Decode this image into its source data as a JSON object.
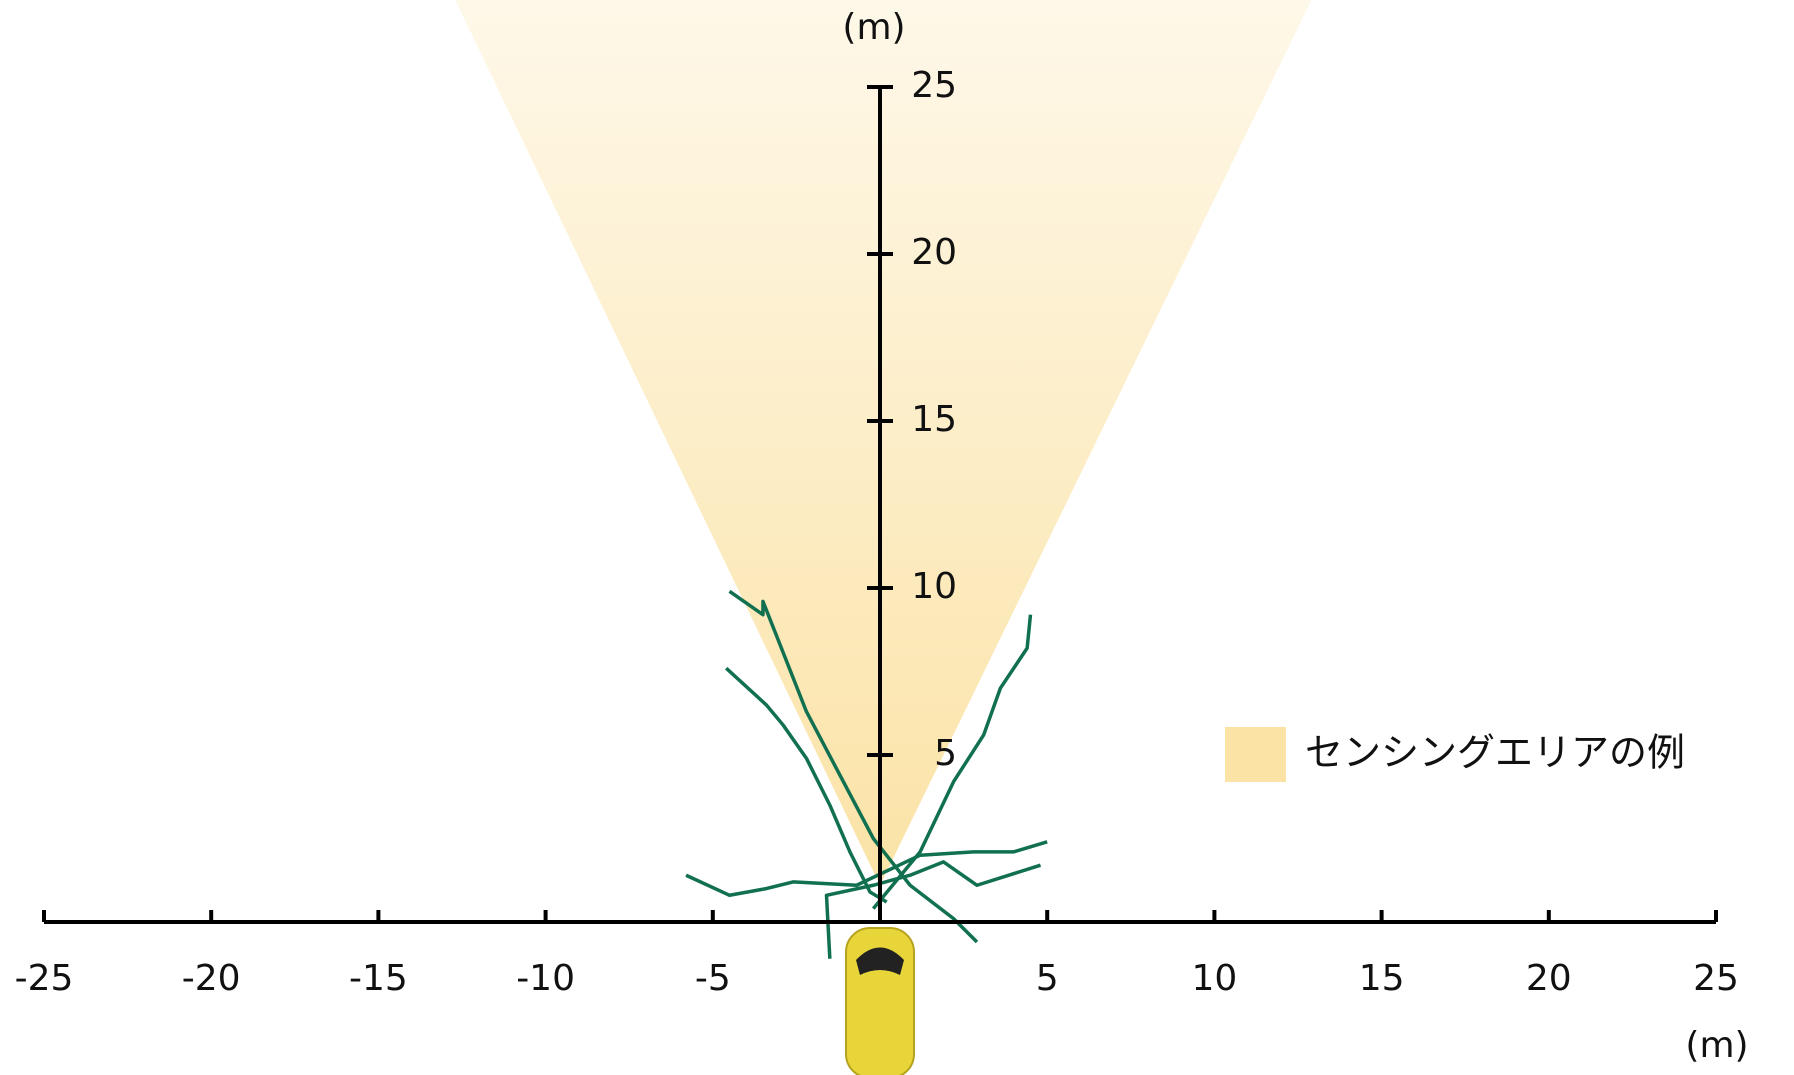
{
  "chart_data": {
    "type": "line",
    "xlabel": "(m)",
    "ylabel": "(m)",
    "xlim": [
      -25,
      25
    ],
    "ylim": [
      0,
      25
    ],
    "xticks": [
      -25,
      -20,
      -15,
      -10,
      -5,
      5,
      10,
      15,
      20,
      25
    ],
    "yticks": [
      5,
      10,
      15,
      20,
      25
    ],
    "sensing_area": {
      "name": "センシングエリアの例",
      "color": "#fbe3a6",
      "x": [
        -12.7,
        0,
        12.9
      ],
      "y": [
        27.6,
        1.1,
        27.6
      ]
    },
    "series": [
      {
        "color": "#11704f",
        "x": [
          -4.5,
          -3.5,
          -3.5,
          -2.2,
          -0.2,
          0.9,
          2.2,
          2.9
        ],
        "values": [
          9.9,
          9.2,
          9.6,
          6.3,
          2.5,
          1.1,
          0.1,
          -0.6
        ]
      },
      {
        "color": "#11704f",
        "x": [
          -4.6,
          -3.4,
          -2.9,
          -2.2,
          -1.5,
          -0.9,
          -0.3,
          0.2
        ],
        "values": [
          7.6,
          6.5,
          5.9,
          4.9,
          3.5,
          2.1,
          0.9,
          0.6
        ]
      },
      {
        "color": "#11704f",
        "x": [
          -0.2,
          1.2,
          2.2,
          3.1,
          3.6,
          4.4,
          4.5
        ],
        "values": [
          0.4,
          2.1,
          4.2,
          5.6,
          7.0,
          8.2,
          9.2
        ]
      },
      {
        "color": "#11704f",
        "x": [
          -5.8,
          -4.5,
          -3.4,
          -2.6,
          -0.7,
          1.2,
          2.8,
          4.0,
          5.0
        ],
        "values": [
          1.4,
          0.8,
          1.0,
          1.2,
          1.1,
          2.0,
          2.1,
          2.1,
          2.4
        ]
      },
      {
        "color": "#11704f",
        "x": [
          -1.5,
          -1.6,
          -0.2,
          0.9,
          1.9,
          2.9,
          4.8
        ],
        "values": [
          -1.1,
          0.8,
          1.1,
          1.4,
          1.8,
          1.1,
          1.7
        ]
      }
    ]
  }
}
